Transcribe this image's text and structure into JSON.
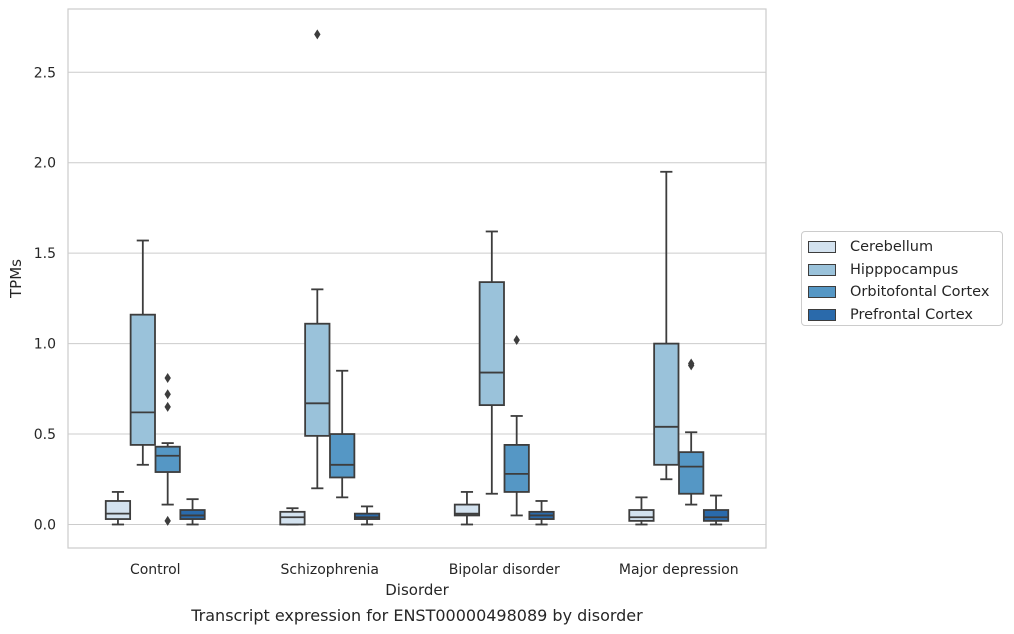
{
  "chart_data": {
    "type": "box",
    "xlabel": "Disorder",
    "ylabel": "TPMs",
    "caption": "Transcript expression for ENST00000498089 by disorder",
    "ylim": [
      -0.13,
      2.85
    ],
    "yticks": [
      "0.0",
      "0.5",
      "1.0",
      "1.5",
      "2.0",
      "2.5"
    ],
    "grid": "horizontal",
    "legend_position": "right",
    "categories": [
      "Control",
      "Schizophrenia",
      "Bipolar disorder",
      "Major depression"
    ],
    "series": [
      {
        "name": "Cerebellum",
        "color": "#d3e2ef",
        "boxes": [
          {
            "whisker_low": 0.0,
            "q1": 0.03,
            "median": 0.06,
            "q3": 0.13,
            "whisker_high": 0.18,
            "outliers": []
          },
          {
            "whisker_low": 0.0,
            "q1": 0.0,
            "median": 0.04,
            "q3": 0.07,
            "whisker_high": 0.09,
            "outliers": []
          },
          {
            "whisker_low": 0.0,
            "q1": 0.05,
            "median": 0.06,
            "q3": 0.11,
            "whisker_high": 0.18,
            "outliers": []
          },
          {
            "whisker_low": 0.0,
            "q1": 0.02,
            "median": 0.04,
            "q3": 0.08,
            "whisker_high": 0.15,
            "outliers": []
          }
        ]
      },
      {
        "name": "Hipppocampus",
        "color": "#9ac2da",
        "boxes": [
          {
            "whisker_low": 0.33,
            "q1": 0.44,
            "median": 0.62,
            "q3": 1.16,
            "whisker_high": 1.57,
            "outliers": []
          },
          {
            "whisker_low": 0.2,
            "q1": 0.49,
            "median": 0.67,
            "q3": 1.11,
            "whisker_high": 1.3,
            "outliers": [
              2.71
            ]
          },
          {
            "whisker_low": 0.17,
            "q1": 0.66,
            "median": 0.84,
            "q3": 1.34,
            "whisker_high": 1.62,
            "outliers": []
          },
          {
            "whisker_low": 0.25,
            "q1": 0.33,
            "median": 0.54,
            "q3": 1.0,
            "whisker_high": 1.95,
            "outliers": []
          }
        ]
      },
      {
        "name": "Orbitofontal Cortex",
        "color": "#5597c5",
        "boxes": [
          {
            "whisker_low": 0.11,
            "q1": 0.29,
            "median": 0.38,
            "q3": 0.43,
            "whisker_high": 0.45,
            "outliers": [
              0.02,
              0.65,
              0.72,
              0.81
            ]
          },
          {
            "whisker_low": 0.15,
            "q1": 0.26,
            "median": 0.33,
            "q3": 0.5,
            "whisker_high": 0.85,
            "outliers": []
          },
          {
            "whisker_low": 0.05,
            "q1": 0.18,
            "median": 0.28,
            "q3": 0.44,
            "whisker_high": 0.6,
            "outliers": [
              1.02
            ]
          },
          {
            "whisker_low": 0.11,
            "q1": 0.17,
            "median": 0.32,
            "q3": 0.4,
            "whisker_high": 0.51,
            "outliers": [
              0.88,
              0.89
            ]
          }
        ]
      },
      {
        "name": "Prefrontal Cortex",
        "color": "#2a6aab",
        "boxes": [
          {
            "whisker_low": 0.0,
            "q1": 0.03,
            "median": 0.05,
            "q3": 0.08,
            "whisker_high": 0.14,
            "outliers": []
          },
          {
            "whisker_low": 0.0,
            "q1": 0.03,
            "median": 0.04,
            "q3": 0.06,
            "whisker_high": 0.1,
            "outliers": []
          },
          {
            "whisker_low": 0.0,
            "q1": 0.03,
            "median": 0.05,
            "q3": 0.07,
            "whisker_high": 0.13,
            "outliers": []
          },
          {
            "whisker_low": 0.0,
            "q1": 0.02,
            "median": 0.04,
            "q3": 0.08,
            "whisker_high": 0.16,
            "outliers": []
          }
        ]
      }
    ]
  }
}
